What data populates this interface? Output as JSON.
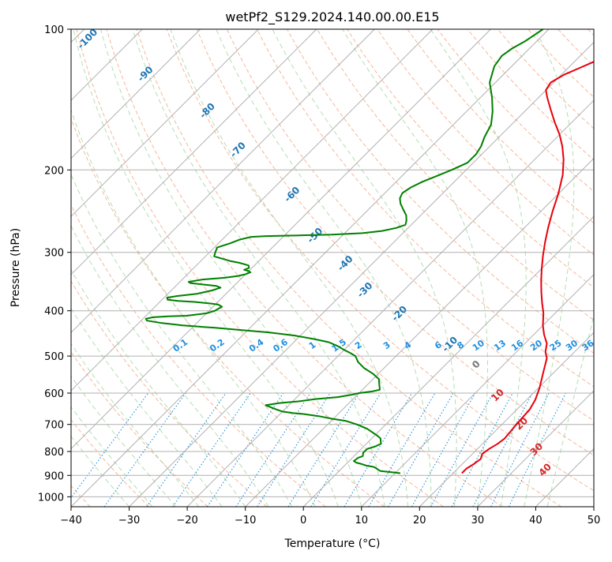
{
  "chart_data": {
    "type": "line",
    "chart_kind": "skew-T log-P diagram",
    "title": "wetPf2_S129.2024.140.00.00.E15",
    "xlabel": "Temperature (°C)",
    "ylabel": "Pressure (hPa)",
    "xlim": [
      -40,
      50
    ],
    "ylim": [
      1050,
      100
    ],
    "y_scale": "log",
    "x_ticks": [
      -40,
      -30,
      -20,
      -10,
      0,
      10,
      20,
      30,
      40,
      50
    ],
    "x_tick_labels": [
      "−40",
      "−30",
      "−20",
      "−10",
      "0",
      "10",
      "20",
      "30",
      "40",
      "50"
    ],
    "y_ticks": [
      1000,
      900,
      800,
      700,
      600,
      500,
      400,
      300,
      200,
      100
    ],
    "y_tick_labels": [
      "1000",
      "900",
      "800",
      "700",
      "600",
      "500",
      "400",
      "300",
      "200",
      "100"
    ],
    "grid": true,
    "colors": {
      "temperature": "#e8000b",
      "dewpoint": "#008000",
      "isotherm": "#b0b0b0",
      "dry_adiabat": "#f4a582",
      "moist_adiabat": "#a6d8a6",
      "mixing_ratio": "#1f8fe0",
      "wetbulb_label": "#1f77b4",
      "warm_label": "#d62728"
    },
    "series": [
      {
        "role": "temperature",
        "points": [
          [
            21.5,
            890
          ],
          [
            21.5,
            870
          ],
          [
            22.0,
            850
          ],
          [
            22.3,
            830
          ],
          [
            21.7,
            810
          ],
          [
            22.0,
            790
          ],
          [
            22.6,
            770
          ],
          [
            22.9,
            750
          ],
          [
            22.5,
            700
          ],
          [
            22.2,
            650
          ],
          [
            21.5,
            620
          ],
          [
            20.2,
            585
          ],
          [
            18.3,
            545
          ],
          [
            16.3,
            505
          ],
          [
            15.0,
            490
          ],
          [
            13.8,
            470
          ],
          [
            11.8,
            450
          ],
          [
            10.0,
            430
          ],
          [
            8.0,
            405
          ],
          [
            6.0,
            385
          ],
          [
            4.0,
            365
          ],
          [
            2.0,
            345
          ],
          [
            0.0,
            325
          ],
          [
            -2.0,
            305
          ],
          [
            -4.0,
            285
          ],
          [
            -6.0,
            265
          ],
          [
            -8.0,
            245
          ],
          [
            -10.0,
            225
          ],
          [
            -12.5,
            205
          ],
          [
            -15.0,
            190
          ],
          [
            -17.5,
            178
          ],
          [
            -20.0,
            168
          ],
          [
            -23.0,
            158
          ],
          [
            -26.0,
            148
          ],
          [
            -28.5,
            140
          ],
          [
            -30.0,
            135
          ],
          [
            -30.5,
            130
          ],
          [
            -29.5,
            125
          ],
          [
            -28.0,
            121
          ],
          [
            -26.5,
            117
          ],
          [
            -26.0,
            112
          ],
          [
            -26.5,
            106
          ],
          [
            -27.5,
            100
          ]
        ]
      },
      {
        "role": "dewpoint",
        "points": [
          [
            10.9,
            890
          ],
          [
            7.0,
            880
          ],
          [
            5.5,
            865
          ],
          [
            5.0,
            862
          ],
          [
            3.8,
            858
          ],
          [
            2.5,
            850
          ],
          [
            1.5,
            845
          ],
          [
            0.8,
            838
          ],
          [
            1.0,
            825
          ],
          [
            1.5,
            818
          ],
          [
            1.0,
            805
          ],
          [
            1.0,
            790
          ],
          [
            2.0,
            780
          ],
          [
            2.5,
            770
          ],
          [
            1.5,
            750
          ],
          [
            0.5,
            740
          ],
          [
            -2.5,
            715
          ],
          [
            -5.0,
            700
          ],
          [
            -7.5,
            688
          ],
          [
            -10.5,
            680
          ],
          [
            -13.0,
            672
          ],
          [
            -16.0,
            665
          ],
          [
            -18.0,
            662
          ],
          [
            -20.0,
            657
          ],
          [
            -21.5,
            650
          ],
          [
            -23.0,
            642
          ],
          [
            -24.0,
            637
          ],
          [
            -22.0,
            630
          ],
          [
            -19.0,
            625
          ],
          [
            -16.5,
            618
          ],
          [
            -13.0,
            612
          ],
          [
            -11.0,
            605
          ],
          [
            -10.0,
            600
          ],
          [
            -8.0,
            595
          ],
          [
            -7.0,
            590
          ],
          [
            -8.0,
            575
          ],
          [
            -9.0,
            560
          ],
          [
            -11.0,
            545
          ],
          [
            -13.5,
            530
          ],
          [
            -15.5,
            515
          ],
          [
            -17.0,
            500
          ],
          [
            -18.5,
            492
          ],
          [
            -20.0,
            485
          ],
          [
            -22.0,
            475
          ],
          [
            -24.0,
            467
          ],
          [
            -27.0,
            460
          ],
          [
            -31.0,
            452
          ],
          [
            -36.0,
            445
          ],
          [
            -41.0,
            440
          ],
          [
            -46.0,
            435
          ],
          [
            -52.0,
            430
          ],
          [
            -56.0,
            425
          ],
          [
            -59.0,
            420
          ],
          [
            -59.5,
            416
          ],
          [
            -58.5,
            413
          ],
          [
            -56.0,
            411
          ],
          [
            -53.0,
            410
          ],
          [
            -50.0,
            405
          ],
          [
            -49.0,
            400
          ],
          [
            -48.5,
            392
          ],
          [
            -49.5,
            388
          ],
          [
            -51.0,
            386
          ],
          [
            -54.0,
            383
          ],
          [
            -57.0,
            381
          ],
          [
            -59.0,
            379
          ],
          [
            -59.5,
            375
          ],
          [
            -58.0,
            372
          ],
          [
            -55.0,
            368
          ],
          [
            -53.0,
            362
          ],
          [
            -52.0,
            357
          ],
          [
            -53.0,
            354
          ],
          [
            -56.0,
            351
          ],
          [
            -58.0,
            349
          ],
          [
            -58.5,
            347
          ],
          [
            -56.5,
            343
          ],
          [
            -53.0,
            340
          ],
          [
            -51.0,
            337
          ],
          [
            -50.0,
            334
          ],
          [
            -49.5,
            331
          ],
          [
            -50.0,
            329
          ],
          [
            -51.0,
            327
          ],
          [
            -50.5,
            324
          ],
          [
            -51.0,
            320
          ],
          [
            -53.0,
            316
          ],
          [
            -55.0,
            313
          ],
          [
            -56.5,
            310
          ],
          [
            -58.5,
            306
          ],
          [
            -59.0,
            300
          ],
          [
            -59.5,
            293
          ],
          [
            -58.0,
            287
          ],
          [
            -57.0,
            282
          ],
          [
            -55.5,
            278
          ],
          [
            -53.0,
            277
          ],
          [
            -47.5,
            276
          ],
          [
            -42.0,
            275
          ],
          [
            -37.0,
            273
          ],
          [
            -34.0,
            270
          ],
          [
            -32.0,
            266
          ],
          [
            -31.0,
            262
          ],
          [
            -31.5,
            257
          ],
          [
            -32.5,
            250
          ],
          [
            -34.0,
            243
          ],
          [
            -35.5,
            236
          ],
          [
            -36.5,
            230
          ],
          [
            -37.0,
            224
          ],
          [
            -36.5,
            218
          ],
          [
            -35.5,
            212
          ],
          [
            -34.0,
            206
          ],
          [
            -32.5,
            200
          ],
          [
            -31.0,
            193
          ],
          [
            -31.0,
            185
          ],
          [
            -31.5,
            178
          ],
          [
            -32.5,
            170
          ],
          [
            -33.5,
            160
          ],
          [
            -35.5,
            150
          ],
          [
            -38.0,
            140
          ],
          [
            -41.0,
            130
          ],
          [
            -43.0,
            120
          ],
          [
            -43.5,
            114
          ],
          [
            -43.0,
            110
          ],
          [
            -42.0,
            106
          ],
          [
            -41.5,
            103
          ],
          [
            -41.0,
            100
          ]
        ]
      }
    ],
    "dry_adiabat_labels": [
      {
        "text": "-100",
        "p": 106,
        "t": -117
      },
      {
        "text": "-90",
        "p": 126,
        "t": -101
      },
      {
        "text": "-80",
        "p": 151,
        "t": -84
      },
      {
        "text": "-70",
        "p": 183,
        "t": -72
      },
      {
        "text": "-60",
        "p": 228,
        "t": -55
      },
      {
        "text": "-50",
        "p": 279,
        "t": -44
      },
      {
        "text": "-40",
        "p": 320,
        "t": -34
      },
      {
        "text": "-30",
        "p": 365,
        "t": -26
      },
      {
        "text": "-20",
        "p": 410,
        "t": -16
      },
      {
        "text": "-10",
        "p": 477,
        "t": -2
      },
      {
        "text": "0",
        "p": 527,
        "t": 6
      },
      {
        "text": "10",
        "p": 613,
        "t": 15
      },
      {
        "text": "20",
        "p": 705,
        "t": 24
      },
      {
        "text": "30",
        "p": 800,
        "t": 31
      },
      {
        "text": "40",
        "p": 885,
        "t": 36
      }
    ],
    "mixing_ratio_labels": [
      "0.1",
      "0.2",
      "0.4",
      "0.6",
      "1",
      "1.5",
      "2",
      "3",
      "4",
      "6",
      "8",
      "10",
      "13",
      "16",
      "20",
      "25",
      "30",
      "36"
    ],
    "mixing_ratio_label_pressure": 480
  }
}
